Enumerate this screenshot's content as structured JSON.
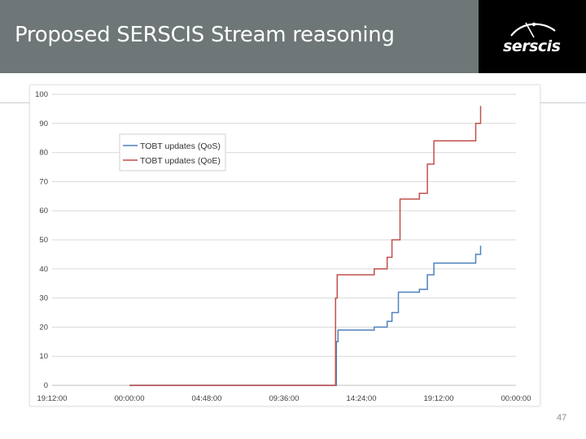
{
  "slide": {
    "title": "Proposed SERSCIS Stream reasoning",
    "logo_text": "serscis",
    "page_number": "47"
  },
  "colors": {
    "title_bar": "#6e7677",
    "logo_bg": "#000000",
    "qos_line": "#4f81bd",
    "qoe_line": "#c0504d",
    "grid": "#d9d9d9"
  },
  "chart_data": {
    "type": "line",
    "title": "",
    "xlabel": "",
    "ylabel": "",
    "ylim": [
      0,
      100
    ],
    "y_ticks": [
      "0",
      "10",
      "20",
      "30",
      "40",
      "50",
      "60",
      "70",
      "80",
      "90",
      "100"
    ],
    "x_ticks": [
      "19:12:00",
      "00:00:00",
      "04:48:00",
      "09:36:00",
      "14:24:00",
      "19:12:00",
      "00:00:00"
    ],
    "x_range_hours": [
      -4.8,
      24
    ],
    "grid": true,
    "legend_position": "top-left",
    "series": [
      {
        "name": "TOBT updates (QoS)",
        "color": "#4f81bd",
        "step": true,
        "points": [
          [
            0.0,
            0
          ],
          [
            12.85,
            0
          ],
          [
            12.85,
            15
          ],
          [
            12.95,
            15
          ],
          [
            12.95,
            19
          ],
          [
            15.2,
            19
          ],
          [
            15.2,
            20
          ],
          [
            16.0,
            20
          ],
          [
            16.0,
            22
          ],
          [
            16.3,
            22
          ],
          [
            16.3,
            25
          ],
          [
            16.7,
            25
          ],
          [
            16.7,
            32
          ],
          [
            18.0,
            32
          ],
          [
            18.0,
            33
          ],
          [
            18.5,
            33
          ],
          [
            18.5,
            38
          ],
          [
            18.9,
            38
          ],
          [
            18.9,
            42
          ],
          [
            21.5,
            42
          ],
          [
            21.5,
            45
          ],
          [
            21.8,
            45
          ],
          [
            21.8,
            48
          ]
        ]
      },
      {
        "name": "TOBT updates (QoE)",
        "color": "#c0504d",
        "step": true,
        "points": [
          [
            0.0,
            0
          ],
          [
            12.8,
            0
          ],
          [
            12.8,
            30
          ],
          [
            12.9,
            30
          ],
          [
            12.9,
            38
          ],
          [
            15.2,
            38
          ],
          [
            15.2,
            40
          ],
          [
            16.0,
            40
          ],
          [
            16.0,
            44
          ],
          [
            16.3,
            44
          ],
          [
            16.3,
            50
          ],
          [
            16.8,
            50
          ],
          [
            16.8,
            64
          ],
          [
            18.0,
            64
          ],
          [
            18.0,
            66
          ],
          [
            18.5,
            66
          ],
          [
            18.5,
            76
          ],
          [
            18.9,
            76
          ],
          [
            18.9,
            84
          ],
          [
            21.5,
            84
          ],
          [
            21.5,
            90
          ],
          [
            21.8,
            90
          ],
          [
            21.8,
            96
          ]
        ]
      }
    ]
  }
}
